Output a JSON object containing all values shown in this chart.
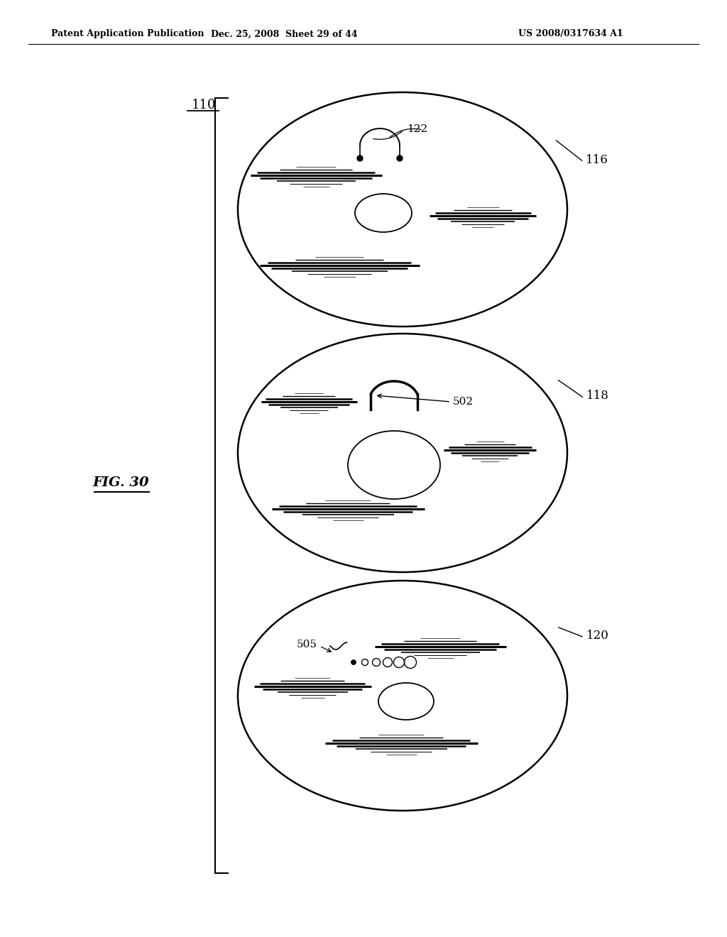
{
  "bg_color": "#ffffff",
  "header_left": "Patent Application Publication",
  "header_mid": "Dec. 25, 2008  Sheet 29 of 44",
  "header_right": "US 2008/0317634 A1"
}
